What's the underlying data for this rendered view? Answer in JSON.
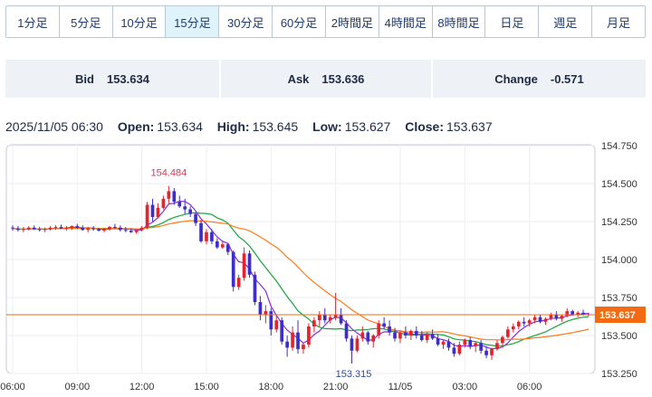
{
  "tabs": [
    {
      "label": "1分足",
      "active": false
    },
    {
      "label": "5分足",
      "active": false
    },
    {
      "label": "10分足",
      "active": false
    },
    {
      "label": "15分足",
      "active": true
    },
    {
      "label": "30分足",
      "active": false
    },
    {
      "label": "60分足",
      "active": false
    },
    {
      "label": "2時間足",
      "active": false
    },
    {
      "label": "4時間足",
      "active": false
    },
    {
      "label": "8時間足",
      "active": false
    },
    {
      "label": "日足",
      "active": false
    },
    {
      "label": "週足",
      "active": false
    },
    {
      "label": "月足",
      "active": false
    }
  ],
  "quote": {
    "bid_label": "Bid",
    "bid": "153.634",
    "ask_label": "Ask",
    "ask": "153.636",
    "change_label": "Change",
    "change": "-0.571"
  },
  "ohlc": {
    "datetime": "2025/11/05 06:30",
    "open_label": "Open:",
    "open": "153.634",
    "high_label": "High:",
    "high": "153.645",
    "low_label": "Low:",
    "low": "153.627",
    "close_label": "Close:",
    "close": "153.637"
  },
  "chart_data": {
    "type": "candlestick",
    "ylim": [
      153.25,
      154.75
    ],
    "yticks": [
      "154.750",
      "154.500",
      "154.250",
      "154.000",
      "153.750",
      "153.500",
      "153.250"
    ],
    "xticks": [
      "06:00",
      "09:00",
      "12:00",
      "15:00",
      "18:00",
      "21:00",
      "11/05",
      "03:00",
      "06:00"
    ],
    "last_price_label": "153.637",
    "last_price": 153.637,
    "high_annotation": {
      "label": "154.484",
      "value": 154.484
    },
    "low_annotation": {
      "label": "153.315",
      "value": 153.315
    },
    "colors": {
      "up": "#e8212e",
      "down": "#3d2ec9",
      "ma_short": "#8a2be2",
      "ma_mid": "#1aa33a",
      "ma_long": "#ff7a1a",
      "last_price": "#f36a12"
    },
    "candles": [
      [
        154.21,
        154.225,
        154.19,
        154.205
      ],
      [
        154.205,
        154.22,
        154.185,
        154.195
      ],
      [
        154.195,
        154.215,
        154.18,
        154.2
      ],
      [
        154.2,
        154.22,
        154.19,
        154.21
      ],
      [
        154.21,
        154.225,
        154.195,
        154.2
      ],
      [
        154.2,
        154.215,
        154.185,
        154.195
      ],
      [
        154.195,
        154.21,
        154.18,
        154.2
      ],
      [
        154.2,
        154.22,
        154.19,
        154.21
      ],
      [
        154.21,
        154.225,
        154.195,
        154.215
      ],
      [
        154.215,
        154.23,
        154.2,
        154.205
      ],
      [
        154.205,
        154.22,
        154.19,
        154.21
      ],
      [
        154.21,
        154.225,
        154.195,
        154.22
      ],
      [
        154.22,
        154.235,
        154.2,
        154.21
      ],
      [
        154.21,
        154.225,
        154.19,
        154.195
      ],
      [
        154.195,
        154.215,
        154.18,
        154.205
      ],
      [
        154.205,
        154.22,
        154.19,
        154.2
      ],
      [
        154.2,
        154.21,
        154.185,
        154.19
      ],
      [
        154.19,
        154.21,
        154.18,
        154.2
      ],
      [
        154.2,
        154.22,
        154.19,
        154.215
      ],
      [
        154.215,
        154.235,
        154.2,
        154.21
      ],
      [
        154.21,
        154.225,
        154.185,
        154.195
      ],
      [
        154.195,
        154.215,
        154.18,
        154.19
      ],
      [
        154.19,
        154.205,
        154.175,
        154.18
      ],
      [
        154.18,
        154.2,
        154.17,
        154.195
      ],
      [
        154.195,
        154.22,
        154.185,
        154.21
      ],
      [
        154.21,
        154.38,
        154.2,
        154.36
      ],
      [
        154.36,
        154.4,
        154.25,
        154.28
      ],
      [
        154.28,
        154.37,
        154.27,
        154.34
      ],
      [
        154.34,
        154.42,
        154.33,
        154.4
      ],
      [
        154.4,
        154.484,
        154.37,
        154.45
      ],
      [
        154.45,
        154.47,
        154.36,
        154.38
      ],
      [
        154.38,
        154.42,
        154.34,
        154.35
      ],
      [
        154.35,
        154.4,
        154.3,
        154.33
      ],
      [
        154.33,
        154.35,
        154.28,
        154.3
      ],
      [
        154.3,
        154.31,
        154.22,
        154.24
      ],
      [
        154.24,
        154.26,
        154.11,
        154.12
      ],
      [
        154.12,
        154.2,
        154.1,
        154.18
      ],
      [
        154.18,
        154.2,
        154.1,
        154.12
      ],
      [
        154.12,
        154.14,
        154.07,
        154.08
      ],
      [
        154.08,
        154.12,
        154.07,
        154.1
      ],
      [
        154.1,
        154.11,
        154.03,
        154.05
      ],
      [
        154.05,
        154.06,
        153.79,
        153.82
      ],
      [
        153.82,
        153.9,
        153.8,
        153.88
      ],
      [
        153.88,
        154.08,
        153.86,
        154.04
      ],
      [
        154.04,
        154.06,
        153.88,
        153.9
      ],
      [
        153.9,
        153.92,
        153.7,
        153.72
      ],
      [
        153.72,
        153.76,
        153.6,
        153.64
      ],
      [
        153.64,
        153.7,
        153.58,
        153.66
      ],
      [
        153.66,
        153.68,
        153.5,
        153.54
      ],
      [
        153.54,
        153.64,
        153.52,
        153.6
      ],
      [
        153.6,
        153.62,
        153.44,
        153.46
      ],
      [
        153.46,
        153.5,
        153.36,
        153.42
      ],
      [
        153.42,
        153.56,
        153.4,
        153.52
      ],
      [
        153.52,
        153.6,
        153.38,
        153.41
      ],
      [
        153.41,
        153.45,
        153.38,
        153.44
      ],
      [
        153.44,
        153.58,
        153.42,
        153.56
      ],
      [
        153.56,
        153.62,
        153.52,
        153.6
      ],
      [
        153.6,
        153.66,
        153.56,
        153.64
      ],
      [
        153.64,
        153.68,
        153.58,
        153.6
      ],
      [
        153.6,
        153.64,
        153.58,
        153.62
      ],
      [
        153.62,
        153.78,
        153.6,
        153.64
      ],
      [
        153.64,
        153.68,
        153.57,
        153.58
      ],
      [
        153.58,
        153.6,
        153.46,
        153.48
      ],
      [
        153.48,
        153.5,
        153.315,
        153.4
      ],
      [
        153.4,
        153.5,
        153.39,
        153.48
      ],
      [
        153.48,
        153.56,
        153.46,
        153.52
      ],
      [
        153.52,
        153.53,
        153.44,
        153.46
      ],
      [
        153.46,
        153.51,
        153.42,
        153.5
      ],
      [
        153.5,
        153.6,
        153.48,
        153.58
      ],
      [
        153.58,
        153.62,
        153.54,
        153.56
      ],
      [
        153.56,
        153.6,
        153.5,
        153.52
      ],
      [
        153.52,
        153.55,
        153.46,
        153.48
      ],
      [
        153.48,
        153.53,
        153.45,
        153.52
      ],
      [
        153.52,
        153.56,
        153.48,
        153.5
      ],
      [
        153.5,
        153.54,
        153.47,
        153.53
      ],
      [
        153.53,
        153.56,
        153.48,
        153.5
      ],
      [
        153.5,
        153.53,
        153.46,
        153.47
      ],
      [
        153.47,
        153.52,
        153.45,
        153.51
      ],
      [
        153.51,
        153.54,
        153.47,
        153.48
      ],
      [
        153.48,
        153.51,
        153.43,
        153.44
      ],
      [
        153.44,
        153.47,
        153.41,
        153.46
      ],
      [
        153.46,
        153.48,
        153.4,
        153.42
      ],
      [
        153.42,
        153.45,
        153.36,
        153.38
      ],
      [
        153.38,
        153.46,
        153.37,
        153.44
      ],
      [
        153.44,
        153.48,
        153.42,
        153.47
      ],
      [
        153.47,
        153.49,
        153.41,
        153.43
      ],
      [
        153.43,
        153.46,
        153.39,
        153.45
      ],
      [
        153.45,
        153.47,
        153.38,
        153.4
      ],
      [
        153.4,
        153.43,
        153.35,
        153.37
      ],
      [
        153.37,
        153.42,
        153.34,
        153.41
      ],
      [
        153.41,
        153.47,
        153.4,
        153.45
      ],
      [
        153.45,
        153.5,
        153.43,
        153.49
      ],
      [
        153.49,
        153.56,
        153.48,
        153.54
      ],
      [
        153.54,
        153.58,
        153.52,
        153.56
      ],
      [
        153.56,
        153.6,
        153.54,
        153.59
      ],
      [
        153.59,
        153.62,
        153.56,
        153.58
      ],
      [
        153.58,
        153.61,
        153.56,
        153.6
      ],
      [
        153.6,
        153.64,
        153.58,
        153.62
      ],
      [
        153.62,
        153.64,
        153.58,
        153.59
      ],
      [
        153.59,
        153.62,
        153.57,
        153.61
      ],
      [
        153.61,
        153.65,
        153.6,
        153.64
      ],
      [
        153.64,
        153.66,
        153.6,
        153.61
      ],
      [
        153.61,
        153.64,
        153.59,
        153.63
      ],
      [
        153.63,
        153.68,
        153.62,
        153.66
      ],
      [
        153.66,
        153.67,
        153.63,
        153.64
      ],
      [
        153.64,
        153.66,
        153.62,
        153.65
      ],
      [
        153.65,
        153.67,
        153.63,
        153.64
      ],
      [
        153.64,
        153.65,
        153.627,
        153.637
      ]
    ]
  }
}
